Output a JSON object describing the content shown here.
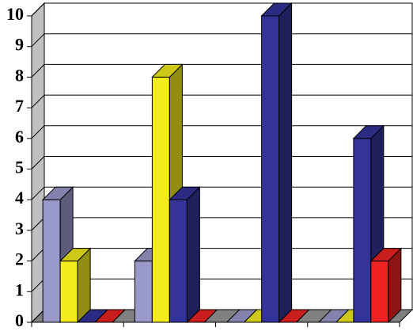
{
  "chart_data": {
    "type": "bar3d",
    "categories": [
      null,
      null,
      null,
      null
    ],
    "series": [
      {
        "color": "#9999cc",
        "values": [
          4,
          2,
          0,
          0
        ]
      },
      {
        "color": "#f2ec1c",
        "values": [
          2,
          8,
          0,
          0
        ]
      },
      {
        "color": "#333399",
        "values": [
          0,
          4,
          10,
          6
        ]
      },
      {
        "color": "#ee2222",
        "values": [
          0,
          0,
          0,
          2
        ]
      }
    ],
    "ylim": [
      0,
      10
    ],
    "yticks": [
      0,
      1,
      2,
      3,
      4,
      5,
      6,
      7,
      8,
      9,
      10
    ],
    "grid": true
  }
}
